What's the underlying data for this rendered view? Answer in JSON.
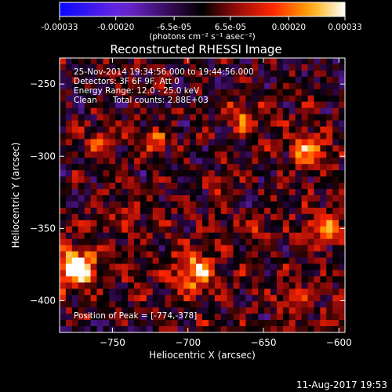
{
  "colorbar": {
    "ticks": [
      "-0.00033",
      "-0.00020",
      "-6.5e-05",
      "6.5e-05",
      "0.00020",
      "0.00033"
    ],
    "tick_values": [
      -0.00033,
      -0.0002,
      -6.5e-05,
      6.5e-05,
      0.0002,
      0.00033
    ],
    "range": [
      -0.00033,
      0.00033
    ],
    "units_label": "(photons cm⁻² s⁻¹ asec⁻²)"
  },
  "chart_data": {
    "type": "heatmap",
    "title": "Reconstructed RHESSI Image",
    "xlabel": "Heliocentric X (arcsec)",
    "ylabel": "Heliocentric Y (arcsec)",
    "xlim": [
      -785,
      -596
    ],
    "ylim": [
      -422,
      -232
    ],
    "xticks": [
      -750,
      -700,
      -650,
      -600
    ],
    "yticks": [
      -250,
      -300,
      -350,
      -400
    ],
    "annotations": [
      "25-Nov-2014 19:34:56.000 to 19:44:56.000",
      "Detectors: 3F 6F 9F, Att 0",
      "Energy Range: 12.0 - 25.0 keV",
      "Clean      Total counts: 2.88E+03"
    ],
    "peak_label": "Position of Peak = [-774,-378]",
    "peak": [
      -774,
      -378
    ],
    "sources": [
      {
        "x": -774,
        "y": -378,
        "amp": 1.0,
        "sigma": 12
      },
      {
        "x": -722,
        "y": -290,
        "amp": 0.55,
        "sigma": 7
      },
      {
        "x": -665,
        "y": -272,
        "amp": 0.45,
        "sigma": 10
      },
      {
        "x": -620,
        "y": -295,
        "amp": 0.5,
        "sigma": 13
      },
      {
        "x": -695,
        "y": -380,
        "amp": 0.6,
        "sigma": 14
      },
      {
        "x": -610,
        "y": -350,
        "amp": 0.55,
        "sigma": 11
      },
      {
        "x": -758,
        "y": -292,
        "amp": 0.35,
        "sigma": 10
      },
      {
        "x": -632,
        "y": -400,
        "amp": 0.4,
        "sigma": 9
      },
      {
        "x": -680,
        "y": -318,
        "amp": 0.35,
        "sigma": 7
      },
      {
        "x": -740,
        "y": -345,
        "amp": 0.3,
        "sigma": 9
      },
      {
        "x": -655,
        "y": -350,
        "amp": 0.3,
        "sigma": 10
      },
      {
        "x": -598,
        "y": -405,
        "amp": 0.35,
        "sigma": 8
      }
    ]
  },
  "footer_timestamp": "11-Aug-2017 19:53"
}
